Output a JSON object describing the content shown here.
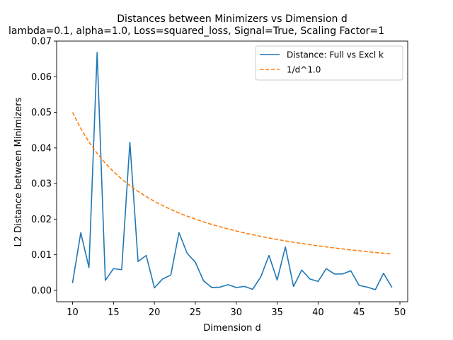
{
  "chart_data": {
    "type": "line",
    "title": "Distances between Minimizers vs Dimension d",
    "subtitle": "lambda=0.1, alpha=1.0, Loss=squared_loss, Signal=True, Scaling Factor=1",
    "xlabel": "Dimension d",
    "ylabel": "L2 Distance between Minimizers",
    "xlim": [
      8.05,
      50.95
    ],
    "ylim": [
      -0.0032,
      0.07
    ],
    "xticks": [
      10,
      15,
      20,
      25,
      30,
      35,
      40,
      45,
      50
    ],
    "yticks": [
      0.0,
      0.01,
      0.02,
      0.03,
      0.04,
      0.05,
      0.06,
      0.07
    ],
    "ytick_labels": [
      "0.00",
      "0.01",
      "0.02",
      "0.03",
      "0.04",
      "0.05",
      "0.06",
      "0.07"
    ],
    "grid": false,
    "legend_position": "top-right",
    "x": [
      10,
      11,
      12,
      13,
      14,
      15,
      16,
      17,
      18,
      19,
      20,
      21,
      22,
      23,
      24,
      25,
      26,
      27,
      28,
      29,
      30,
      31,
      32,
      33,
      34,
      35,
      36,
      37,
      38,
      39,
      40,
      41,
      42,
      43,
      44,
      45,
      46,
      47,
      48,
      49
    ],
    "series": [
      {
        "name": "Distance: Full vs Excl k",
        "style": "solid",
        "color": "#1f77b4",
        "values": [
          0.0022,
          0.0162,
          0.0064,
          0.0668,
          0.0028,
          0.0061,
          0.0058,
          0.0416,
          0.0081,
          0.0098,
          0.0007,
          0.0032,
          0.0043,
          0.0162,
          0.0104,
          0.0079,
          0.0027,
          0.0008,
          0.0009,
          0.0016,
          0.0008,
          0.0011,
          0.0003,
          0.0038,
          0.0098,
          0.0029,
          0.0122,
          0.0011,
          0.0057,
          0.0032,
          0.0025,
          0.0061,
          0.0046,
          0.0046,
          0.0055,
          0.0014,
          0.0009,
          0.0002,
          0.0048,
          0.0009
        ]
      },
      {
        "name": "1/d^1.0",
        "style": "dashed",
        "color": "#ff7f0e",
        "values": [
          0.05,
          0.04545,
          0.04167,
          0.03846,
          0.03571,
          0.03333,
          0.03125,
          0.02941,
          0.02778,
          0.02632,
          0.025,
          0.02381,
          0.02273,
          0.02174,
          0.02083,
          0.02,
          0.01923,
          0.01852,
          0.01786,
          0.01724,
          0.01667,
          0.01613,
          0.01563,
          0.01515,
          0.01471,
          0.01429,
          0.01389,
          0.01351,
          0.01316,
          0.01282,
          0.0125,
          0.0122,
          0.0119,
          0.01163,
          0.01136,
          0.01111,
          0.01087,
          0.01064,
          0.01042,
          0.0102
        ]
      }
    ]
  }
}
